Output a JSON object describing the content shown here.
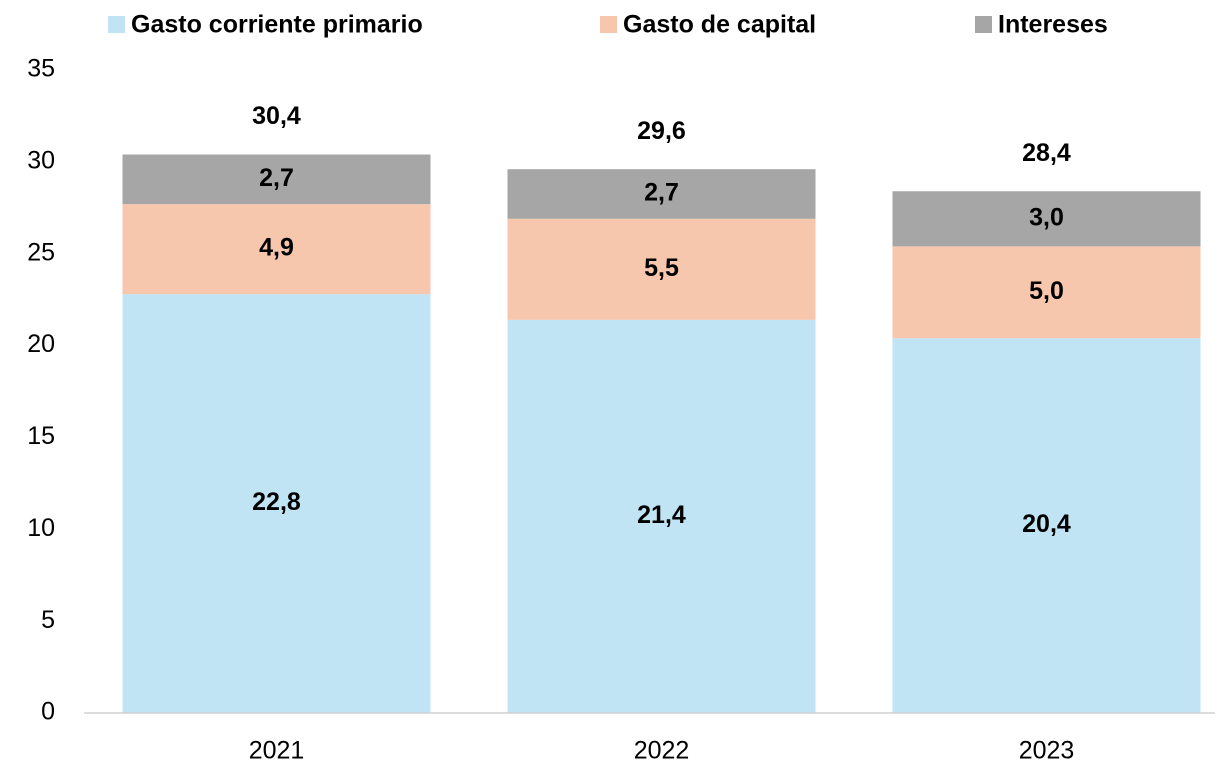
{
  "chart_data": {
    "type": "stacked_bar",
    "categories": [
      "2021",
      "2022",
      "2023"
    ],
    "series": [
      {
        "name": "Gasto corriente primario",
        "color": "#c0e4f4",
        "values": [
          22.8,
          21.4,
          20.4
        ],
        "value_labels": [
          "22,8",
          "21,4",
          "20,4"
        ]
      },
      {
        "name": "Gasto de capital",
        "color": "#f6c6ad",
        "values": [
          4.9,
          5.5,
          5.0
        ],
        "value_labels": [
          "4,9",
          "5,5",
          "5,0"
        ]
      },
      {
        "name": "Intereses",
        "color": "#a6a6a6",
        "values": [
          2.7,
          2.7,
          3.0
        ],
        "value_labels": [
          "2,7",
          "2,7",
          "3,0"
        ]
      }
    ],
    "totals": [
      30.4,
      29.6,
      28.4
    ],
    "total_labels": [
      "30,4",
      "29,6",
      "28,4"
    ],
    "ylim": [
      0,
      35
    ],
    "yticks": [
      0,
      5,
      10,
      15,
      20,
      25,
      30,
      35
    ],
    "grid": false,
    "legend": "top"
  }
}
